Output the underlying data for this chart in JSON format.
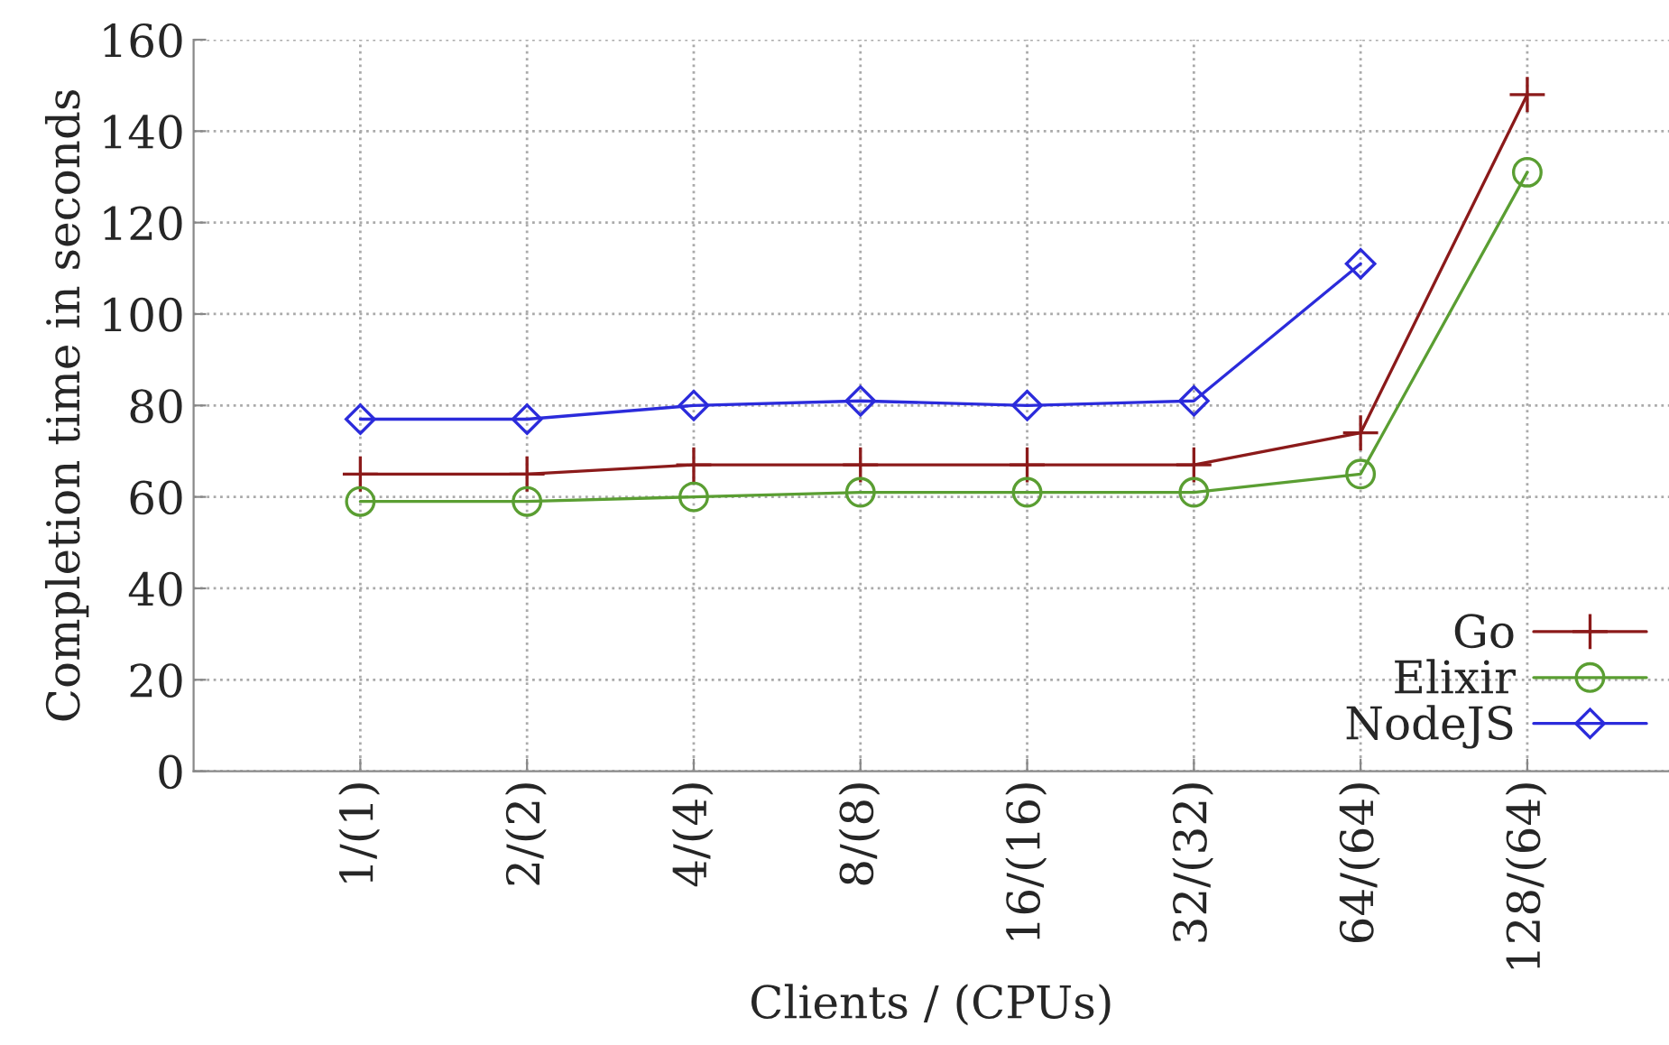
{
  "chart_data": {
    "type": "line",
    "xlabel": "Clients / (CPUs)",
    "ylabel": "Completion time in seconds",
    "categories": [
      "1/(1)",
      "2/(2)",
      "4/(4)",
      "8/(8)",
      "16/(16)",
      "32/(32)",
      "64/(64)",
      "128/(64)"
    ],
    "series": [
      {
        "name": "Go",
        "color": "#8b1a1a",
        "marker": "cross",
        "values": [
          65,
          65,
          67,
          67,
          67,
          67,
          74,
          148
        ]
      },
      {
        "name": "Elixir",
        "color": "#5a9e32",
        "marker": "circle",
        "values": [
          59,
          59,
          60,
          61,
          61,
          61,
          65,
          131
        ]
      },
      {
        "name": "NodeJS",
        "color": "#2b2bdb",
        "marker": "diamond",
        "values": [
          77,
          77,
          80,
          81,
          80,
          81,
          111,
          null
        ]
      }
    ],
    "ylim": [
      0,
      160
    ],
    "yticks": [
      0,
      20,
      40,
      60,
      80,
      100,
      120,
      140,
      160
    ],
    "grid": true,
    "legend": "bottom right",
    "line_style": "solid"
  }
}
